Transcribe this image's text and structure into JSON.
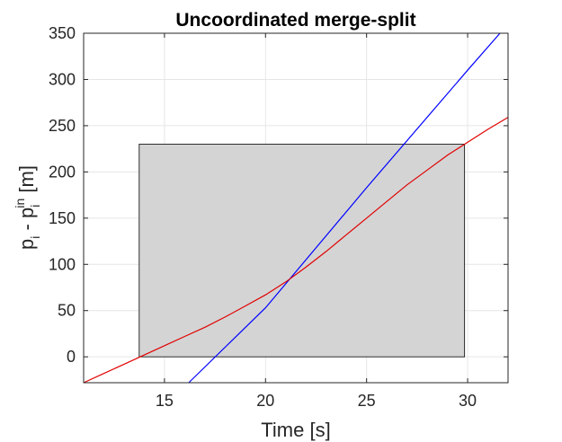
{
  "chart_data": {
    "type": "line",
    "title": "Uncoordinated merge-split",
    "xlabel": "Time [s]",
    "ylabel": {
      "base1": "p",
      "sub1": "i",
      "mid": " - p",
      "sub2": "i",
      "sup2": "in",
      "unit": " [m]"
    },
    "xlim": [
      11,
      32
    ],
    "ylim": [
      -28,
      350
    ],
    "xticks": [
      15,
      20,
      25,
      30
    ],
    "yticks": [
      0,
      50,
      100,
      150,
      200,
      250,
      300,
      350
    ],
    "grid": true,
    "legend": "none",
    "region": {
      "x": [
        13.75,
        29.85
      ],
      "y": [
        0,
        230
      ],
      "fill": "#d4d4d4",
      "stroke": "#000000"
    },
    "series": [
      {
        "color": "#0000ff",
        "points": [
          [
            16.2,
            -28
          ],
          [
            20.0,
            53
          ],
          [
            25.0,
            183
          ],
          [
            30.0,
            310
          ],
          [
            31.6,
            350
          ]
        ]
      },
      {
        "color": "#e00000",
        "points": [
          [
            11.0,
            -28
          ],
          [
            12.0,
            -18
          ],
          [
            13.0,
            -8
          ],
          [
            13.8,
            0
          ],
          [
            15.0,
            12
          ],
          [
            16.0,
            22
          ],
          [
            17.0,
            32
          ],
          [
            18.0,
            43
          ],
          [
            19.0,
            55
          ],
          [
            20.0,
            67
          ],
          [
            21.0,
            81
          ],
          [
            22.0,
            97
          ],
          [
            23.0,
            114
          ],
          [
            24.0,
            132
          ],
          [
            25.0,
            150
          ],
          [
            26.0,
            168
          ],
          [
            27.0,
            186
          ],
          [
            28.0,
            202
          ],
          [
            29.0,
            218
          ],
          [
            30.0,
            232
          ],
          [
            31.0,
            246
          ],
          [
            32.0,
            259
          ]
        ]
      }
    ]
  }
}
